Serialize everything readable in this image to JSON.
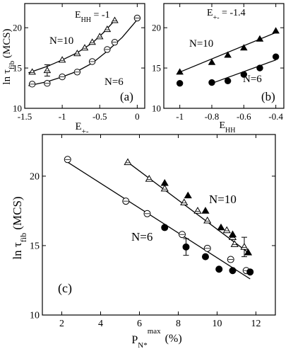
{
  "chart_data": [
    {
      "type": "scatter",
      "panel": "(a)",
      "annotation": "E_HH = -1",
      "ylabel": "ln τ_fib (MCS)",
      "xlabel": "E_+-",
      "xlim": [
        -1.5,
        0.1
      ],
      "ylim": [
        10,
        23
      ],
      "x_ticks": [
        "-1.5",
        "-1",
        "-0.5",
        "0"
      ],
      "y_ticks": [
        "10",
        "15",
        "20"
      ],
      "series": [
        {
          "name": "N=10",
          "marker": "open-triangle",
          "points": [
            {
              "x": -1.4,
              "y": 14.5
            },
            {
              "x": -1.2,
              "y": 14.7,
              "err": 0.7
            },
            {
              "x": -1.0,
              "y": 16.0
            },
            {
              "x": -0.8,
              "y": 16.8
            },
            {
              "x": -0.7,
              "y": 17.5
            },
            {
              "x": -0.6,
              "y": 18.2
            },
            {
              "x": -0.5,
              "y": 18.9
            },
            {
              "x": -0.4,
              "y": 19.8
            },
            {
              "x": -0.3,
              "y": 20.9
            }
          ],
          "curve": [
            [
              -1.45,
              14.4
            ],
            [
              -1.2,
              15.2
            ],
            [
              -1.0,
              16.0
            ],
            [
              -0.8,
              16.9
            ],
            [
              -0.6,
              18.1
            ],
            [
              -0.45,
              19.4
            ],
            [
              -0.3,
              20.9
            ]
          ]
        },
        {
          "name": "N=6",
          "marker": "open-circle",
          "points": [
            {
              "x": -1.4,
              "y": 13.0
            },
            {
              "x": -1.2,
              "y": 13.1
            },
            {
              "x": -1.0,
              "y": 13.9
            },
            {
              "x": -0.8,
              "y": 14.5
            },
            {
              "x": -0.6,
              "y": 15.8
            },
            {
              "x": -0.4,
              "y": 17.3
            },
            {
              "x": -0.3,
              "y": 18.2
            },
            {
              "x": 0.0,
              "y": 21.2
            }
          ],
          "curve": [
            [
              -1.45,
              12.8
            ],
            [
              -1.2,
              13.3
            ],
            [
              -1.0,
              13.9
            ],
            [
              -0.8,
              14.6
            ],
            [
              -0.6,
              15.6
            ],
            [
              -0.4,
              17.1
            ],
            [
              -0.2,
              18.8
            ],
            [
              0.0,
              21.0
            ]
          ]
        }
      ],
      "labels": [
        "N=10",
        "N=6"
      ]
    },
    {
      "type": "scatter",
      "panel": "(b)",
      "annotation": "E_+- = -1.4",
      "xlabel": "E_HH",
      "xlim": [
        -1.1,
        -0.35
      ],
      "ylim": [
        10,
        23
      ],
      "x_ticks": [
        "-1",
        "-0.8",
        "-0.6",
        "-0.4"
      ],
      "y_ticks": [
        "10",
        "15",
        "20"
      ],
      "series": [
        {
          "name": "N=10",
          "marker": "filled-triangle",
          "points": [
            {
              "x": -1.0,
              "y": 14.5
            },
            {
              "x": -0.8,
              "y": 15.7
            },
            {
              "x": -0.7,
              "y": 16.6
            },
            {
              "x": -0.6,
              "y": 17.5
            },
            {
              "x": -0.5,
              "y": 18.6
            },
            {
              "x": -0.4,
              "y": 19.6
            }
          ],
          "line": [
            [
              -1.0,
              14.5
            ],
            [
              -0.4,
              19.4
            ]
          ]
        },
        {
          "name": "N=6",
          "marker": "filled-circle",
          "points": [
            {
              "x": -1.0,
              "y": 13.1
            },
            {
              "x": -0.8,
              "y": 13.2
            },
            {
              "x": -0.7,
              "y": 13.4
            },
            {
              "x": -0.6,
              "y": 14.2
            },
            {
              "x": -0.5,
              "y": 15.0
            },
            {
              "x": -0.4,
              "y": 16.4
            }
          ],
          "line": [
            [
              -0.8,
              13.1
            ],
            [
              -0.4,
              16.0
            ]
          ]
        }
      ],
      "labels": [
        "N=10",
        "N=6"
      ]
    },
    {
      "type": "scatter",
      "panel": "(c)",
      "ylabel": "ln τ_fib (MCS)",
      "xlabel": "P_N* max (%)",
      "xlim": [
        1,
        13
      ],
      "ylim": [
        10,
        23
      ],
      "x_ticks": [
        "2",
        "4",
        "6",
        "8",
        "10",
        "12"
      ],
      "y_ticks": [
        "10",
        "15",
        "20"
      ],
      "series": [
        {
          "name": "N=10",
          "marker": "triangle",
          "points_open": [
            {
              "x": 5.4,
              "y": 21.0
            },
            {
              "x": 6.5,
              "y": 19.8
            },
            {
              "x": 7.3,
              "y": 19.1
            },
            {
              "x": 8.3,
              "y": 18.1
            },
            {
              "x": 9.0,
              "y": 17.5
            },
            {
              "x": 9.5,
              "y": 16.8
            },
            {
              "x": 10.5,
              "y": 16.1
            },
            {
              "x": 10.8,
              "y": 15.6
            },
            {
              "x": 10.9,
              "y": 15.1
            },
            {
              "x": 11.4,
              "y": 14.9,
              "err": 0.7
            }
          ],
          "points_filled": [
            {
              "x": 7.3,
              "y": 19.5
            },
            {
              "x": 8.5,
              "y": 18.6
            },
            {
              "x": 9.4,
              "y": 17.5
            },
            {
              "x": 10.2,
              "y": 16.3
            },
            {
              "x": 10.8,
              "y": 15.8
            },
            {
              "x": 11.6,
              "y": 14.5
            }
          ],
          "line": [
            [
              5.4,
              21.0
            ],
            [
              11.6,
              14.5
            ]
          ]
        },
        {
          "name": "N=6",
          "marker": "circle",
          "points_open": [
            {
              "x": 2.3,
              "y": 21.2
            },
            {
              "x": 5.3,
              "y": 18.2
            },
            {
              "x": 6.4,
              "y": 17.3
            },
            {
              "x": 8.2,
              "y": 15.8
            },
            {
              "x": 9.5,
              "y": 14.8
            },
            {
              "x": 10.7,
              "y": 14.0
            },
            {
              "x": 11.5,
              "y": 13.2
            }
          ],
          "points_filled": [
            {
              "x": 7.3,
              "y": 16.3
            },
            {
              "x": 8.4,
              "y": 14.9,
              "err": 0.6
            },
            {
              "x": 9.4,
              "y": 14.2
            },
            {
              "x": 10.1,
              "y": 13.3
            },
            {
              "x": 10.8,
              "y": 13.2
            },
            {
              "x": 11.7,
              "y": 13.1
            }
          ],
          "line": [
            [
              2.2,
              21.1
            ],
            [
              11.7,
              12.6
            ]
          ]
        }
      ],
      "labels": [
        "N=10",
        "N=6"
      ]
    }
  ]
}
